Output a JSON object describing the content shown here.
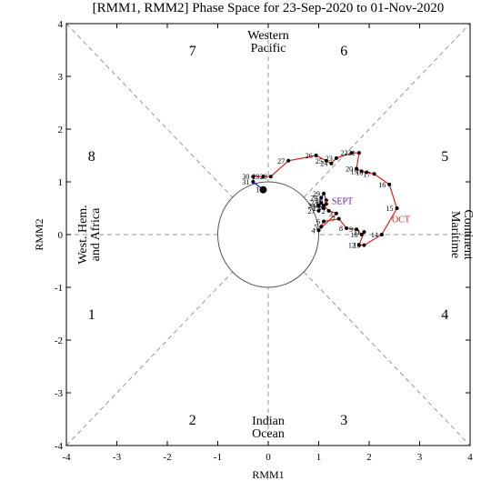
{
  "chart_data": {
    "type": "phase",
    "title": "[RMM1, RMM2] Phase Space for 23-Sep-2020 to 01-Nov-2020",
    "xlabel": "RMM1",
    "ylabel": "RMM2",
    "xlim": [
      -4,
      4
    ],
    "ylim": [
      -4,
      4
    ],
    "xticks": [
      -4,
      -3,
      -2,
      -1,
      0,
      1,
      2,
      3,
      4
    ],
    "yticks": [
      -4,
      -3,
      -2,
      -1,
      0,
      1,
      2,
      3,
      4
    ],
    "phases": [
      "1",
      "2",
      "3",
      "4",
      "5",
      "6",
      "7",
      "8"
    ],
    "regions": {
      "top": [
        "Western",
        "Pacific"
      ],
      "bottom": [
        "Indian",
        "Ocean"
      ],
      "left": [
        "West. Hem.",
        "and Africa"
      ],
      "right": [
        "Maritime",
        "Continent"
      ]
    },
    "series": [
      {
        "name": "SEPT",
        "color": "#5b1fa8",
        "x": [
          1.05,
          1.0,
          1.1,
          1.15,
          1.0,
          1.05,
          1.1,
          1.15
        ],
        "y": [
          0.6,
          0.55,
          0.5,
          0.58,
          0.45,
          0.7,
          0.78,
          0.65
        ],
        "labels": [
          23,
          24,
          25,
          26,
          27,
          28,
          29,
          30
        ]
      },
      {
        "name": "OCT",
        "color": "#e0201b",
        "x": [
          1.1,
          1.2,
          1.35,
          1.0,
          1.05,
          1.1,
          1.4,
          1.55,
          1.75,
          1.85,
          1.9,
          1.8,
          1.9,
          2.25,
          2.55,
          2.4,
          2.1,
          1.95,
          1.85,
          1.75,
          1.8,
          1.65,
          1.35,
          1.25,
          1.15,
          0.95,
          0.4,
          0.05,
          -0.1,
          -0.3,
          -0.3
        ],
        "y": [
          0.55,
          0.45,
          0.4,
          0.08,
          0.15,
          0.25,
          0.3,
          0.12,
          0.1,
          0.0,
          0.05,
          -0.2,
          -0.2,
          0.0,
          0.5,
          0.95,
          1.15,
          1.18,
          1.2,
          1.25,
          1.55,
          1.55,
          1.45,
          1.35,
          1.4,
          1.5,
          1.4,
          1.1,
          1.1,
          1.1,
          1.0
        ],
        "labels": [
          1,
          2,
          3,
          4,
          5,
          6,
          7,
          8,
          9,
          10,
          11,
          12,
          13,
          14,
          15,
          16,
          17,
          18,
          19,
          20,
          21,
          22,
          23,
          24,
          25,
          26,
          27,
          28,
          29,
          30,
          31
        ]
      },
      {
        "color": "#1010e0",
        "x": [
          -0.1
        ],
        "y": [
          0.85
        ],
        "labels": [
          1
        ]
      }
    ]
  }
}
